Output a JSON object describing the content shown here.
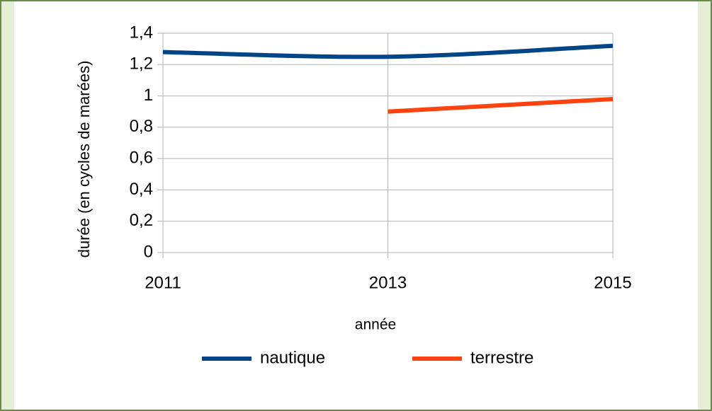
{
  "chart_data": {
    "type": "line",
    "x_label": "année",
    "y_label": "durée (en cycles de marées)",
    "x": [
      2011,
      2013,
      2015
    ],
    "xlim": [
      2011,
      2015
    ],
    "xticks": [
      2011,
      2013,
      2015
    ],
    "ylim": [
      0,
      1.4
    ],
    "yticks": [
      0,
      {
        "value": 0.2,
        "label": "0,2"
      },
      {
        "value": 0.4,
        "label": "0,4"
      },
      {
        "value": 0.6,
        "label": "0,6"
      },
      {
        "value": 0.8,
        "label": "0,8"
      },
      1,
      {
        "value": 1.2,
        "label": "1,2"
      },
      {
        "value": 1.4,
        "label": "1,4"
      }
    ],
    "grid": true,
    "smooth": true,
    "legend": "bottom",
    "series": [
      {
        "name": "nautique",
        "color": "#004586",
        "values": [
          1.28,
          1.25,
          1.32
        ]
      },
      {
        "name": "terrestre",
        "color": "#ff420e",
        "values": [
          null,
          0.9,
          0.98
        ]
      }
    ]
  }
}
